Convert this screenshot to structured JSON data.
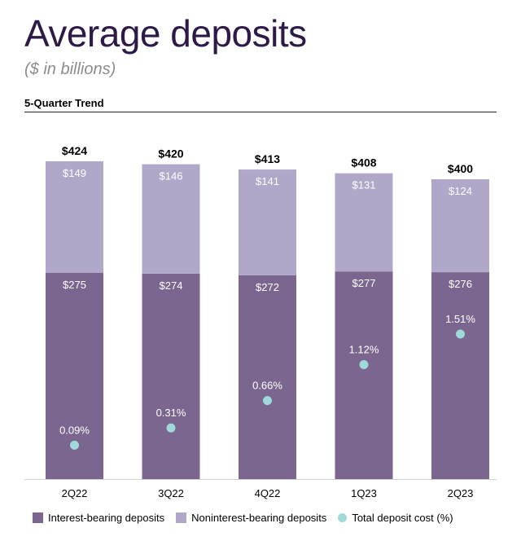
{
  "header": {
    "title": "Average deposits",
    "subtitle": "($ in billions)",
    "section_label": "5-Quarter Trend"
  },
  "colors": {
    "interest_bearing": "#7b6690",
    "noninterest_bearing": "#b1a8c9",
    "deposit_cost": "#9fd9d9",
    "title": "#2e1a47"
  },
  "chart_data": {
    "type": "bar",
    "stacked": true,
    "categories": [
      "2Q22",
      "3Q22",
      "4Q22",
      "1Q23",
      "2Q23"
    ],
    "series": [
      {
        "name": "Interest-bearing deposits",
        "values": [
          275,
          274,
          272,
          277,
          276
        ],
        "labels": [
          "$275",
          "$274",
          "$272",
          "$277",
          "$276"
        ]
      },
      {
        "name": "Noninterest-bearing deposits",
        "values": [
          149,
          146,
          141,
          131,
          124
        ],
        "labels": [
          "$149",
          "$146",
          "$141",
          "$131",
          "$124"
        ]
      }
    ],
    "totals": [
      424,
      420,
      413,
      408,
      400
    ],
    "total_labels": [
      "$424",
      "$420",
      "$413",
      "$408",
      "$400"
    ],
    "line_series": {
      "name": "Total deposit cost (%)",
      "values": [
        0.09,
        0.31,
        0.66,
        1.12,
        1.51
      ],
      "labels": [
        "0.09%",
        "0.31%",
        "0.66%",
        "1.12%",
        "1.51%"
      ]
    },
    "title": "Average deposits",
    "subtitle": "($ in billions)",
    "legend_position": "bottom"
  },
  "legend": [
    {
      "label": "Interest-bearing deposits",
      "kind": "swatch",
      "color": "#7b6690"
    },
    {
      "label": "Noninterest-bearing deposits",
      "kind": "swatch",
      "color": "#b1a8c9"
    },
    {
      "label": "Total deposit cost (%)",
      "kind": "dot",
      "color": "#9fd9d9"
    }
  ]
}
